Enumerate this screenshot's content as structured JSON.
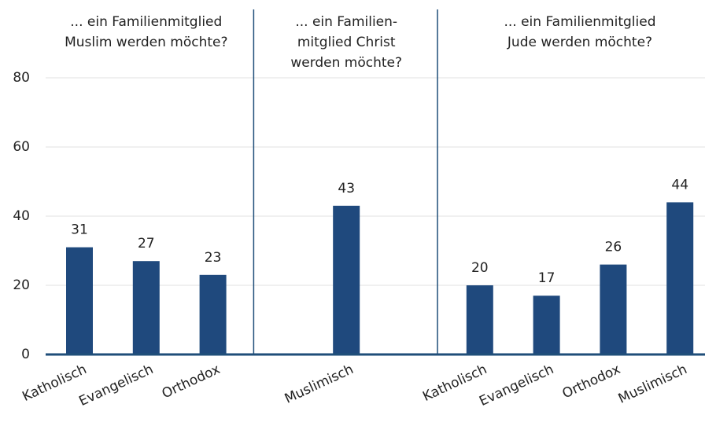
{
  "chart_data": {
    "type": "bar",
    "color": "#1f497d",
    "ylim": [
      0,
      80
    ],
    "yticks": [
      0,
      20,
      40,
      60,
      80
    ],
    "grid": true,
    "groups": [
      {
        "title": [
          "... ein Familienmitglied",
          "Muslim werden möchte?"
        ],
        "categories": [
          "Katholisch",
          "Evangelisch",
          "Orthodox"
        ],
        "values": [
          31,
          27,
          23
        ]
      },
      {
        "title": [
          "... ein Familien-",
          "mitglied Christ",
          "werden möchte?"
        ],
        "categories": [
          "Muslimisch"
        ],
        "values": [
          43
        ]
      },
      {
        "title": [
          "... ein Familienmitglied",
          "Jude werden möchte?"
        ],
        "categories": [
          "Katholisch",
          "Evangelisch",
          "Orthodox",
          "Muslimisch"
        ],
        "values": [
          20,
          17,
          26,
          44
        ]
      }
    ]
  }
}
